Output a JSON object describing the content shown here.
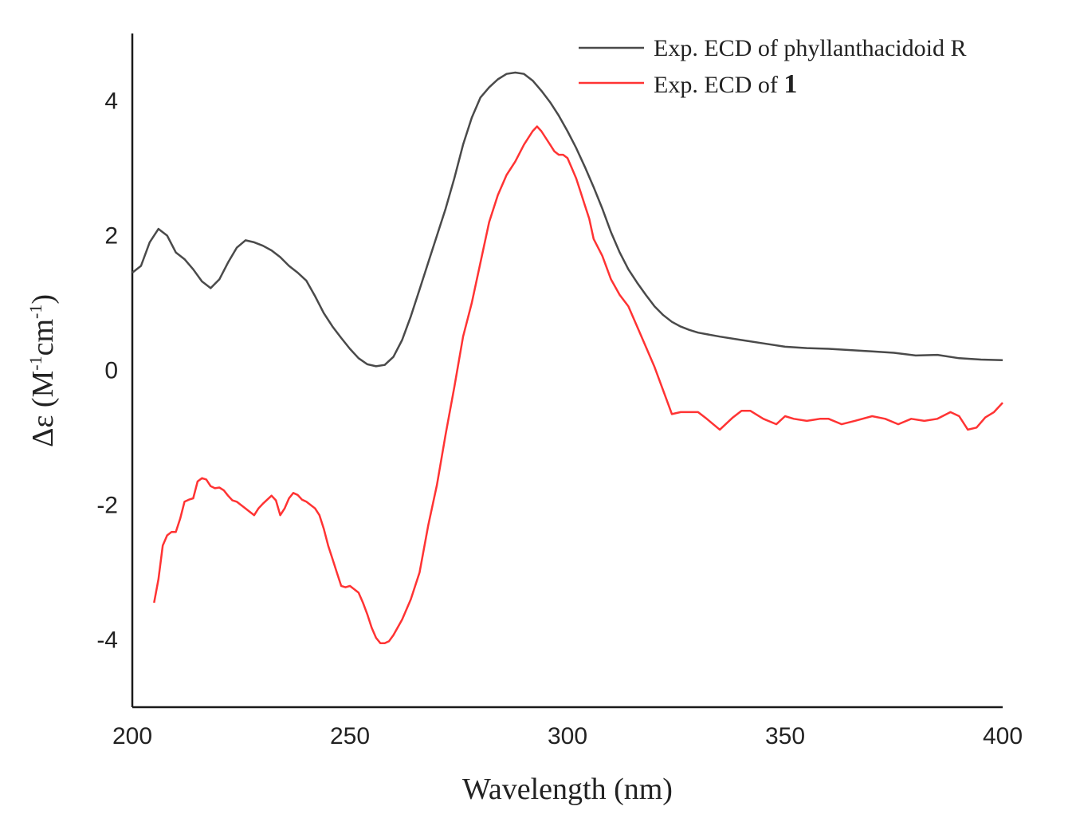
{
  "chart_data": {
    "type": "line",
    "title": "",
    "xlabel": "Wavelength (nm)",
    "ylabel_main": "Δε (M",
    "ylabel_sup1": "-1",
    "ylabel_mid": "cm",
    "ylabel_sup2": "-1",
    "ylabel_end": ")",
    "xlim": [
      200,
      400
    ],
    "ylim": [
      -5,
      5
    ],
    "xticks": [
      200,
      250,
      300,
      350,
      400
    ],
    "yticks": [
      -4,
      -2,
      0,
      2,
      4
    ],
    "legend_position": "top-right",
    "series": [
      {
        "name": "Exp. ECD of  phyllanthacidoid R",
        "legend_prefix": "Exp. ECD of ",
        "legend_name": " phyllanthacidoid R",
        "color": "#4a4a4a",
        "x": [
          200,
          202,
          204,
          206,
          208,
          210,
          212,
          214,
          216,
          218,
          220,
          222,
          224,
          226,
          228,
          230,
          232,
          234,
          236,
          238,
          240,
          242,
          244,
          246,
          248,
          250,
          252,
          254,
          256,
          258,
          260,
          262,
          264,
          266,
          268,
          270,
          272,
          274,
          276,
          278,
          280,
          282,
          284,
          286,
          288,
          290,
          292,
          294,
          296,
          298,
          300,
          302,
          304,
          306,
          308,
          310,
          312,
          314,
          316,
          318,
          320,
          322,
          324,
          326,
          328,
          330,
          335,
          340,
          345,
          350,
          355,
          360,
          365,
          370,
          375,
          380,
          385,
          390,
          395,
          400
        ],
        "y": [
          1.45,
          1.55,
          1.9,
          2.1,
          2.0,
          1.75,
          1.65,
          1.5,
          1.32,
          1.22,
          1.35,
          1.6,
          1.82,
          1.93,
          1.9,
          1.85,
          1.78,
          1.68,
          1.55,
          1.45,
          1.33,
          1.1,
          0.85,
          0.65,
          0.48,
          0.32,
          0.18,
          0.09,
          0.06,
          0.08,
          0.2,
          0.45,
          0.8,
          1.2,
          1.6,
          2.0,
          2.4,
          2.85,
          3.35,
          3.75,
          4.05,
          4.2,
          4.32,
          4.4,
          4.42,
          4.4,
          4.3,
          4.15,
          3.98,
          3.78,
          3.55,
          3.3,
          3.02,
          2.72,
          2.4,
          2.05,
          1.75,
          1.5,
          1.3,
          1.12,
          0.95,
          0.82,
          0.72,
          0.65,
          0.6,
          0.56,
          0.5,
          0.45,
          0.4,
          0.35,
          0.33,
          0.32,
          0.3,
          0.28,
          0.26,
          0.22,
          0.23,
          0.18,
          0.16,
          0.15
        ]
      },
      {
        "name": "Exp. ECD of 1",
        "legend_prefix": "Exp. ECD of ",
        "legend_name": "1",
        "color": "#ff3333",
        "x": [
          205,
          206,
          207,
          208,
          209,
          210,
          211,
          212,
          213,
          214,
          215,
          216,
          217,
          218,
          219,
          220,
          221,
          222,
          223,
          224,
          225,
          226,
          227,
          228,
          229,
          230,
          231,
          232,
          233,
          234,
          235,
          236,
          237,
          238,
          239,
          240,
          241,
          242,
          243,
          244,
          245,
          246,
          247,
          248,
          249,
          250,
          251,
          252,
          253,
          254,
          255,
          256,
          257,
          258,
          259,
          260,
          262,
          264,
          266,
          268,
          270,
          272,
          274,
          276,
          278,
          280,
          282,
          284,
          286,
          288,
          290,
          292,
          293,
          294,
          295,
          296,
          297,
          298,
          299,
          300,
          301,
          302,
          303,
          304,
          305,
          306,
          308,
          310,
          312,
          314,
          316,
          318,
          320,
          322,
          324,
          326,
          328,
          330,
          332,
          335,
          338,
          340,
          342,
          345,
          348,
          350,
          352,
          355,
          358,
          360,
          363,
          366,
          370,
          373,
          376,
          379,
          382,
          385,
          388,
          390,
          392,
          394,
          396,
          398,
          400
        ],
        "y": [
          -3.45,
          -3.1,
          -2.6,
          -2.45,
          -2.4,
          -2.4,
          -2.2,
          -1.95,
          -1.92,
          -1.9,
          -1.65,
          -1.6,
          -1.62,
          -1.72,
          -1.75,
          -1.74,
          -1.78,
          -1.86,
          -1.93,
          -1.95,
          -2.0,
          -2.05,
          -2.1,
          -2.15,
          -2.05,
          -1.98,
          -1.92,
          -1.86,
          -1.93,
          -2.15,
          -2.05,
          -1.9,
          -1.82,
          -1.85,
          -1.92,
          -1.95,
          -2.0,
          -2.05,
          -2.15,
          -2.35,
          -2.6,
          -2.8,
          -3.0,
          -3.2,
          -3.22,
          -3.2,
          -3.25,
          -3.3,
          -3.45,
          -3.62,
          -3.82,
          -3.97,
          -4.05,
          -4.05,
          -4.02,
          -3.93,
          -3.7,
          -3.4,
          -3.0,
          -2.3,
          -1.7,
          -0.95,
          -0.25,
          0.5,
          1.0,
          1.6,
          2.2,
          2.6,
          2.9,
          3.1,
          3.35,
          3.55,
          3.62,
          3.55,
          3.45,
          3.35,
          3.25,
          3.2,
          3.2,
          3.15,
          3.0,
          2.85,
          2.65,
          2.45,
          2.25,
          1.95,
          1.7,
          1.35,
          1.12,
          0.95,
          0.65,
          0.35,
          0.05,
          -0.3,
          -0.65,
          -0.62,
          -0.62,
          -0.62,
          -0.72,
          -0.88,
          -0.7,
          -0.6,
          -0.6,
          -0.72,
          -0.8,
          -0.68,
          -0.72,
          -0.75,
          -0.72,
          -0.72,
          -0.8,
          -0.75,
          -0.68,
          -0.72,
          -0.8,
          -0.72,
          -0.75,
          -0.72,
          -0.62,
          -0.68,
          -0.88,
          -0.85,
          -0.7,
          -0.62,
          -0.48
        ]
      }
    ]
  }
}
